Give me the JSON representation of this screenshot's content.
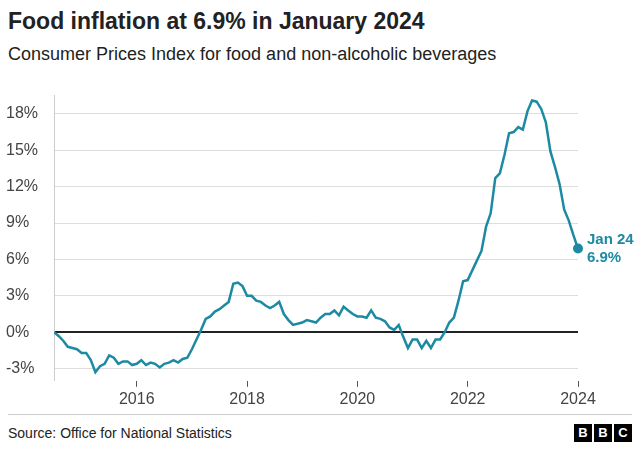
{
  "chart_data": {
    "type": "line",
    "title": "Food inflation at 6.9% in January 2024",
    "subtitle": "Consumer Prices Index for food and non-alcoholic beverages",
    "source": "Source: Office for National Statistics",
    "logo": "BBC",
    "color": "#1c8aa2",
    "grid": true,
    "categories": [
      null,
      null,
      null,
      null,
      null,
      null,
      null,
      null,
      null,
      null,
      null,
      null,
      null,
      null,
      null,
      null,
      null,
      null,
      "2016",
      null,
      null,
      null,
      null,
      null,
      null,
      null,
      null,
      null,
      null,
      null,
      null,
      null,
      null,
      null,
      null,
      null,
      null,
      null,
      null,
      null,
      null,
      null,
      "2018",
      null,
      null,
      null,
      null,
      null,
      null,
      null,
      null,
      null,
      null,
      null,
      null,
      null,
      null,
      null,
      null,
      null,
      null,
      null,
      null,
      null,
      null,
      null,
      "2020",
      null,
      null,
      null,
      null,
      null,
      null,
      null,
      null,
      null,
      null,
      null,
      null,
      null,
      null,
      null,
      null,
      null,
      null,
      null,
      null,
      null,
      null,
      null,
      "2022",
      null,
      null,
      null,
      null,
      null,
      null,
      null,
      null,
      null,
      null,
      null,
      null,
      null,
      null,
      null,
      null,
      null,
      null,
      null,
      null,
      null,
      null,
      null,
      "2024"
    ],
    "values": [
      0.0,
      -0.3,
      -0.7,
      -1.2,
      -1.3,
      -1.4,
      -1.7,
      -1.7,
      -2.3,
      -3.3,
      -2.8,
      -2.6,
      -1.9,
      -2.1,
      -2.6,
      -2.4,
      -2.4,
      -2.7,
      -2.6,
      -2.3,
      -2.7,
      -2.5,
      -2.6,
      -2.9,
      -2.6,
      -2.5,
      -2.3,
      -2.5,
      -2.2,
      -2.1,
      -1.4,
      -0.6,
      0.2,
      1.1,
      1.3,
      1.7,
      1.9,
      2.2,
      2.5,
      4.0,
      4.1,
      3.8,
      3.0,
      3.0,
      2.6,
      2.5,
      2.2,
      2.0,
      2.2,
      2.5,
      1.5,
      1.0,
      0.6,
      0.7,
      0.8,
      1.0,
      0.9,
      0.8,
      1.2,
      1.5,
      1.5,
      1.8,
      1.4,
      2.1,
      1.8,
      1.5,
      1.3,
      1.3,
      1.2,
      1.8,
      1.2,
      1.1,
      0.9,
      0.4,
      0.2,
      0.6,
      -0.4,
      -1.3,
      -0.6,
      -0.6,
      -1.3,
      -0.7,
      -1.3,
      -0.6,
      -0.6,
      0.0,
      0.8,
      1.2,
      2.6,
      4.2,
      4.3,
      5.1,
      5.9,
      6.7,
      8.7,
      9.8,
      12.7,
      13.1,
      14.6,
      16.4,
      16.5,
      16.9,
      16.7,
      18.2,
      19.1,
      19.0,
      18.4,
      17.3,
      14.9,
      13.6,
      12.2,
      10.1,
      9.2,
      8.0,
      6.9
    ],
    "ylim": [
      -4,
      19.5
    ],
    "yticks": [
      {
        "value": -3,
        "label": "-3%"
      },
      {
        "value": 0,
        "label": "0%"
      },
      {
        "value": 3,
        "label": "3%"
      },
      {
        "value": 6,
        "label": "6%"
      },
      {
        "value": 9,
        "label": "9%"
      },
      {
        "value": 12,
        "label": "12%"
      },
      {
        "value": 15,
        "label": "15%"
      },
      {
        "value": 18,
        "label": "18%"
      }
    ],
    "annotations": [
      {
        "x": "Jan 24",
        "y": 6.9,
        "label": "6.9%"
      }
    ]
  }
}
